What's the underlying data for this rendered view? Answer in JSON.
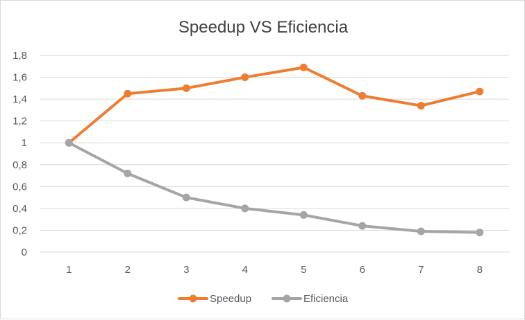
{
  "chart_data": {
    "type": "line",
    "title": "Speedup VS Eficiencia",
    "xlabel": "",
    "ylabel": "",
    "categories": [
      "1",
      "2",
      "3",
      "4",
      "5",
      "6",
      "7",
      "8"
    ],
    "ylim": [
      0,
      1.8
    ],
    "yticks": [
      "0",
      "0,2",
      "0,4",
      "0,6",
      "0,8",
      "1",
      "1,2",
      "1,4",
      "1,6",
      "1,8"
    ],
    "grid": true,
    "legend": "bottom",
    "series": [
      {
        "name": "Speedup",
        "color": "#ED7D31",
        "values": [
          1.0,
          1.45,
          1.5,
          1.6,
          1.69,
          1.43,
          1.34,
          1.47
        ]
      },
      {
        "name": "Eficiencia",
        "color": "#A5A5A5",
        "values": [
          1.0,
          0.72,
          0.5,
          0.4,
          0.34,
          0.24,
          0.19,
          0.18
        ]
      }
    ]
  }
}
